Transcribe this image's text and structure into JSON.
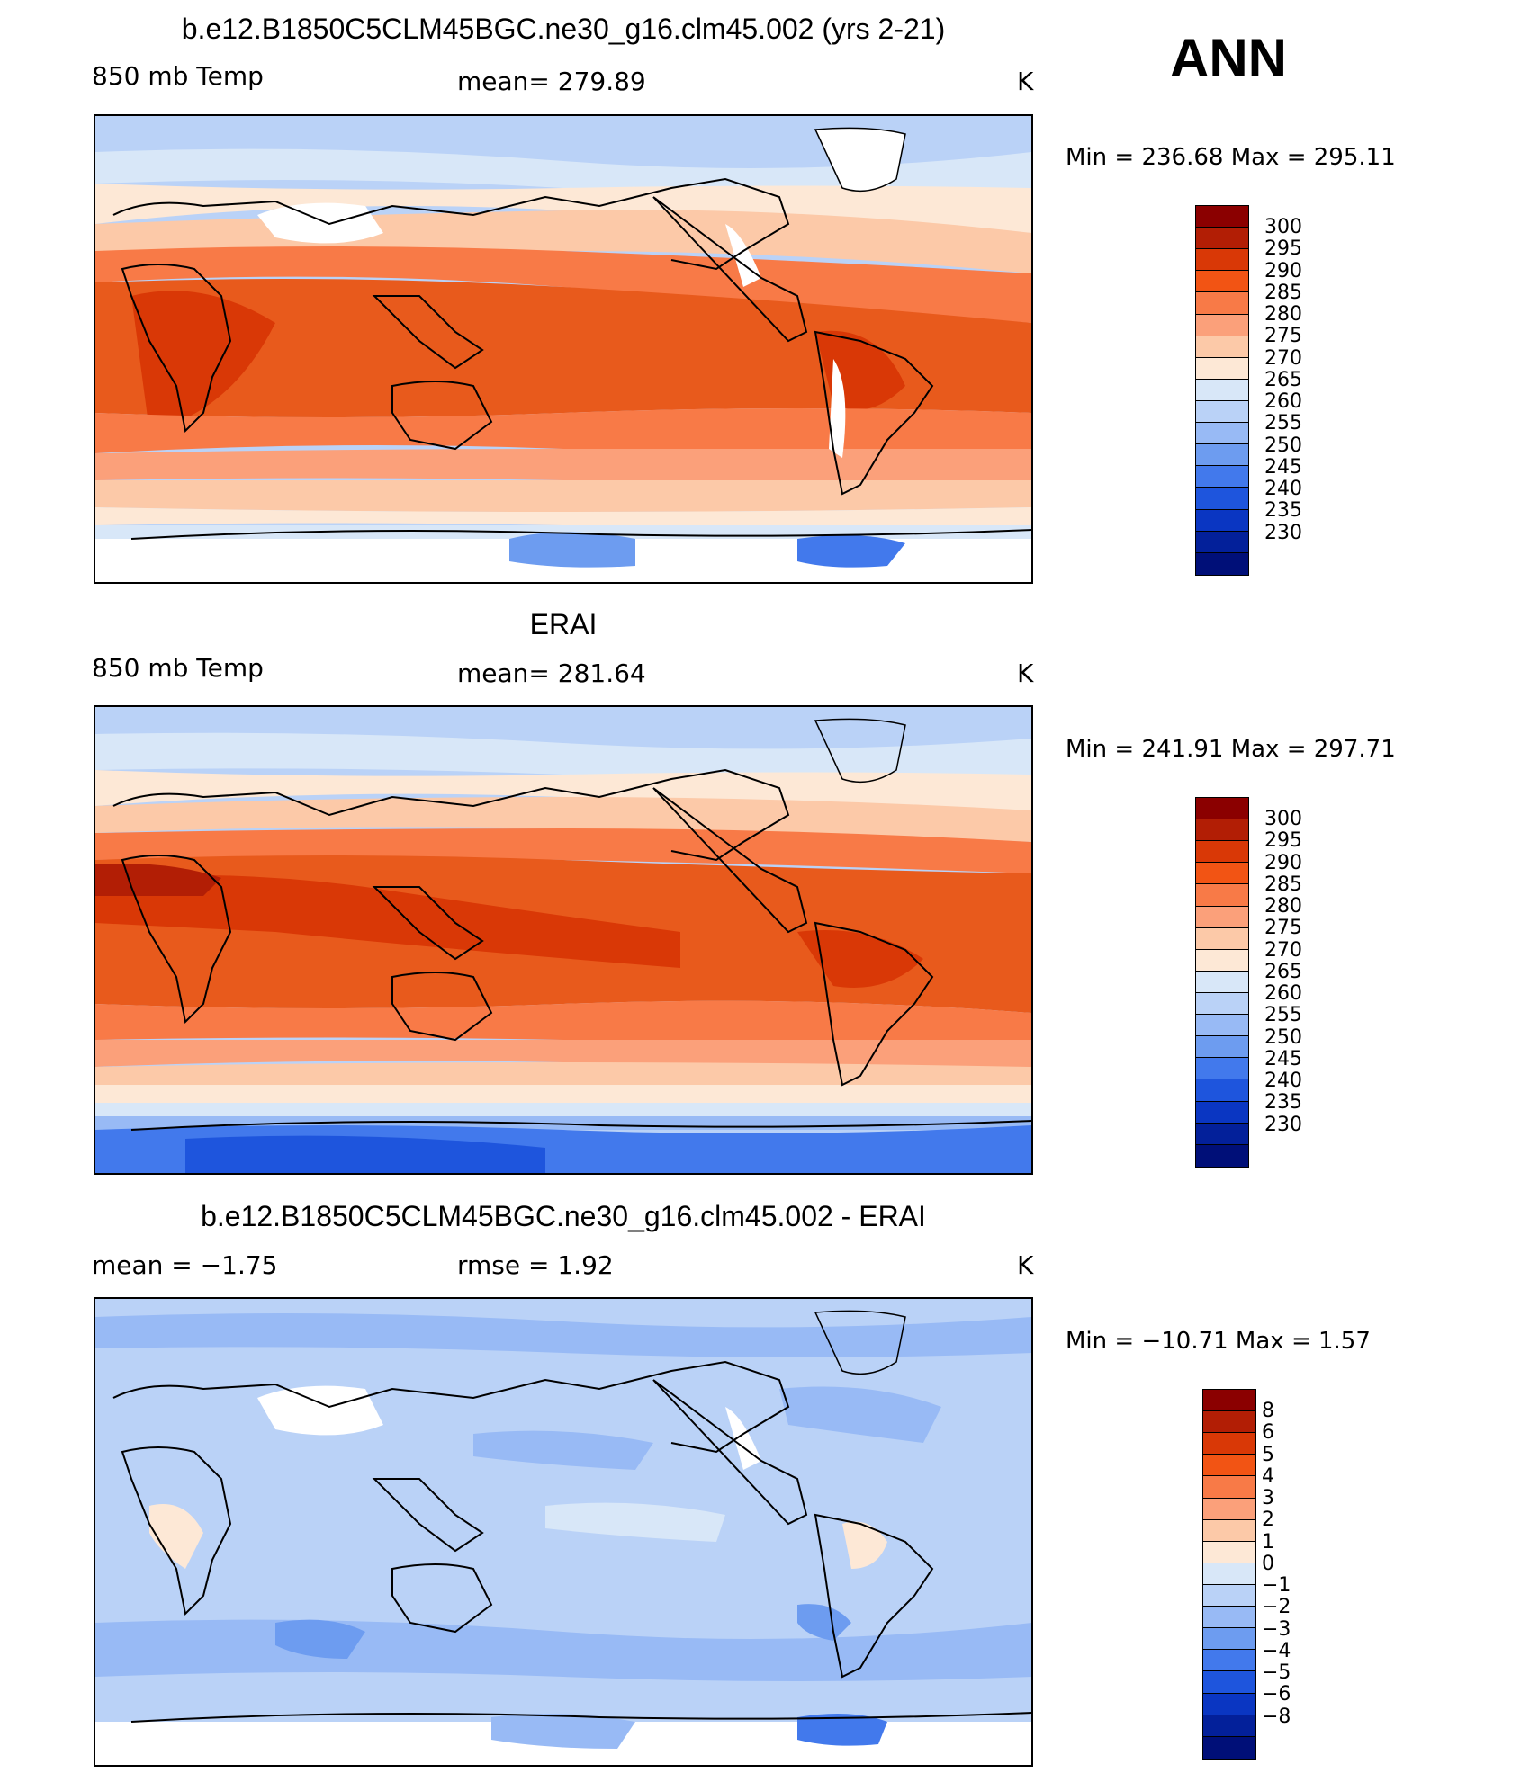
{
  "season": "ANN",
  "panels": [
    {
      "title": "b.e12.B1850C5CLM45BGC.ne30_g16.clm45.002 (yrs 2-21)",
      "left_label": "850 mb Temp",
      "center_label": "mean=  279.89",
      "units": "K",
      "minmax": "Min  =  236.68  Max  =  295.11"
    },
    {
      "title": "ERAI",
      "left_label": "850 mb Temp",
      "center_label": "mean=  281.64",
      "units": "K",
      "minmax": "Min  =  241.91  Max  =  297.71"
    },
    {
      "title": "b.e12.B1850C5CLM45BGC.ne30_g16.clm45.002 - ERAI",
      "left_label": "mean  =    −1.75",
      "center_label": "rmse  =     1.92",
      "units": "K",
      "minmax": "Min  =  −10.71  Max  =     1.57"
    }
  ],
  "colorbars": {
    "temperature": {
      "labels": [
        "300",
        "295",
        "290",
        "285",
        "280",
        "275",
        "270",
        "265",
        "260",
        "255",
        "250",
        "245",
        "240",
        "235",
        "230"
      ],
      "colors": [
        "#8b0000",
        "#b21e05",
        "#d93806",
        "#f25414",
        "#f87a47",
        "#fba07a",
        "#fcc9a8",
        "#fde8d6",
        "#d8e7f8",
        "#bad2f7",
        "#98baf5",
        "#6d9cf0",
        "#4279ec",
        "#1e55dd",
        "#0a36c2",
        "#03209a",
        "#000f78"
      ]
    },
    "difference": {
      "labels": [
        "8",
        "6",
        "5",
        "4",
        "3",
        "2",
        "1",
        "0",
        "−1",
        "−2",
        "−3",
        "−4",
        "−5",
        "−6",
        "−8"
      ],
      "colors": [
        "#8b0000",
        "#b21e05",
        "#d93806",
        "#f25414",
        "#f87a47",
        "#fba07a",
        "#fcc9a8",
        "#fde8d6",
        "#d8e7f8",
        "#bad2f7",
        "#98baf5",
        "#6d9cf0",
        "#4279ec",
        "#1e55dd",
        "#0a36c2",
        "#03209a",
        "#000f78"
      ]
    }
  }
}
